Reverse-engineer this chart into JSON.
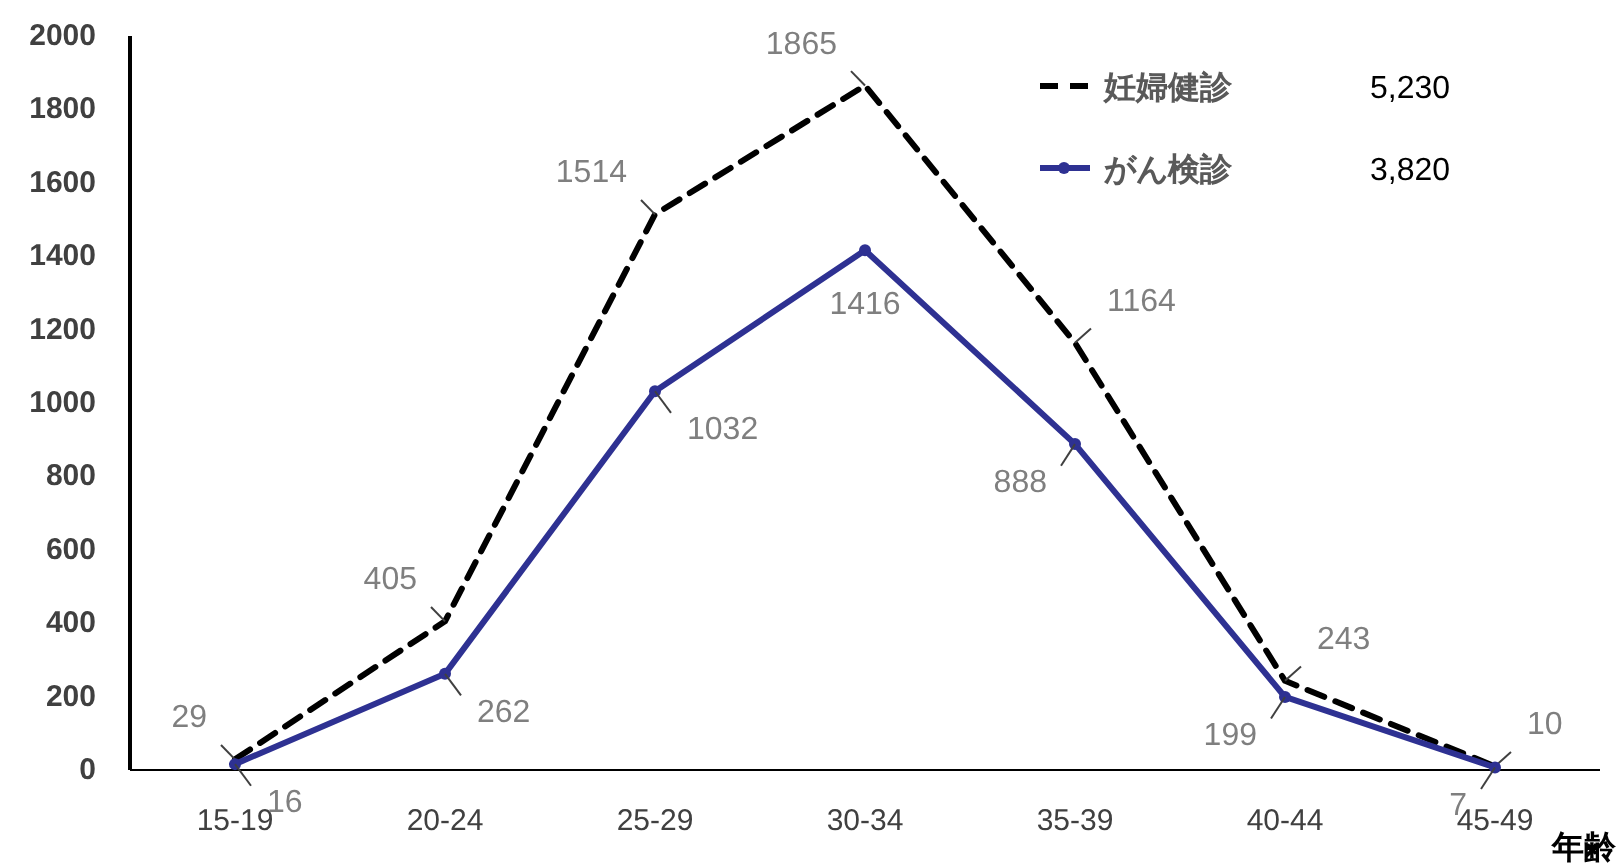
{
  "chart_data": {
    "type": "line",
    "xlabel": "年齢",
    "categories": [
      "15-19",
      "20-24",
      "25-29",
      "30-34",
      "35-39",
      "40-44",
      "45-49"
    ],
    "series": [
      {
        "name": "妊婦健診",
        "color": "#000000",
        "line_style": "dashed",
        "marker": "none",
        "values": [
          29,
          405,
          1514,
          1865,
          1164,
          243,
          10
        ]
      },
      {
        "name": "がん検診",
        "color": "#2e3192",
        "line_style": "solid",
        "marker": "circle",
        "values": [
          16,
          262,
          1032,
          1416,
          888,
          199,
          7
        ]
      }
    ],
    "annotations": [
      "5,230",
      "3,820"
    ],
    "ylim": [
      0,
      2000
    ],
    "yticks": [
      0,
      200,
      400,
      600,
      800,
      1000,
      1200,
      1400,
      1600,
      1800,
      2000
    ],
    "grid": false,
    "legend": "top right",
    "data_labels": true
  }
}
